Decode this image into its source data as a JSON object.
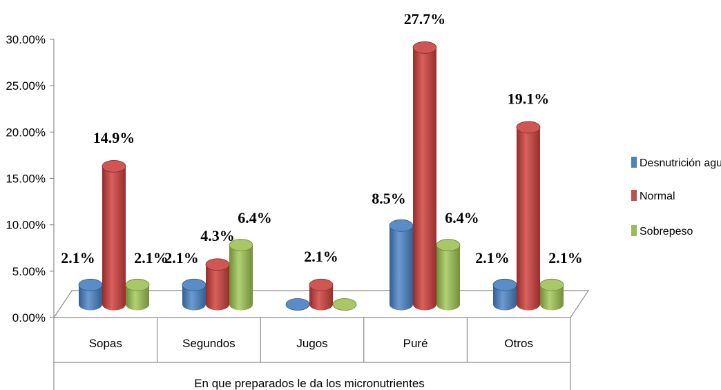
{
  "chart_data": {
    "type": "bar",
    "title": "",
    "xlabel": "En que preparados le da los micronutrientes",
    "ylabel": "",
    "ylim": [
      0,
      0.3
    ],
    "y_ticks": [
      "0.00%",
      "5.00%",
      "10.00%",
      "15.00%",
      "20.00%",
      "25.00%",
      "30.00%"
    ],
    "grid": false,
    "legend_position": "right",
    "categories": [
      "Sopas",
      "Segundos",
      "Jugos",
      "Puré",
      "Otros"
    ],
    "series": [
      {
        "name": "Desnutrición aguda",
        "color": "#4f81bd",
        "values": [
          0.021,
          0.021,
          0.0,
          0.085,
          0.021
        ],
        "labels": [
          "2.1%",
          "2.1%",
          "",
          "8.5%",
          "2.1%"
        ]
      },
      {
        "name": "Normal",
        "color": "#c0504d",
        "values": [
          0.149,
          0.043,
          0.021,
          0.277,
          0.191
        ],
        "labels": [
          "14.9%",
          "4.3%",
          "2.1%",
          "27.7%",
          "19.1%"
        ]
      },
      {
        "name": "Sobrepeso",
        "color": "#9bbb59",
        "values": [
          0.021,
          0.064,
          0.0,
          0.064,
          0.021
        ],
        "labels": [
          "2.1%",
          "6.4%",
          "",
          "6.4%",
          "2.1%"
        ]
      }
    ]
  }
}
